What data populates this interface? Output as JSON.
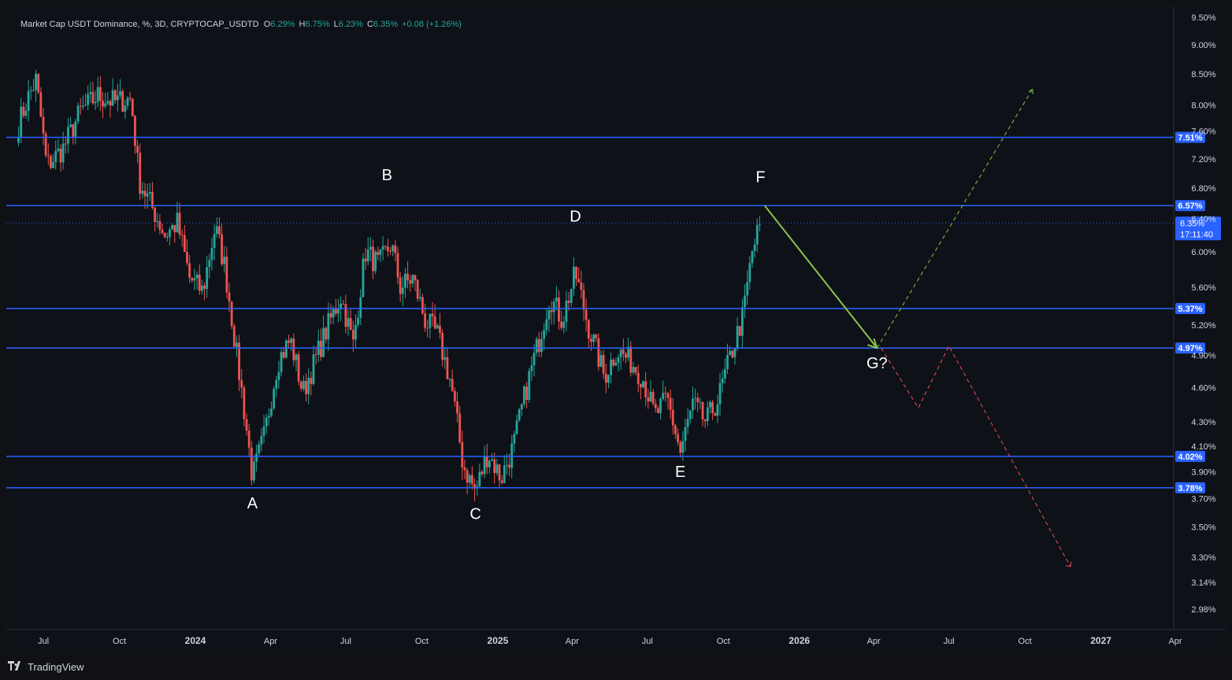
{
  "header": {
    "symbol": "Market Cap USDT Dominance, %, 3D, CRYPTOCAP_USDTD",
    "open_label": "O",
    "open": "6.29%",
    "high_label": "H",
    "high": "6.75%",
    "low_label": "L",
    "low": "6.23%",
    "close_label": "C",
    "close": "6.35%",
    "change": "+0.08 (+1.26%)"
  },
  "footer": {
    "logo_icon": "tradingview-logo-icon",
    "brand": "TradingView"
  },
  "colors": {
    "up": "#26a69a",
    "down": "#ef5350",
    "level_line": "#2962ff",
    "level_badge": "#2962ff",
    "projection_green": "#8bc34a",
    "projection_red": "#ef5350",
    "price_badge": "#2962ff"
  },
  "chart_data": {
    "type": "candlestick",
    "timeframe": "3D",
    "y_scale": "log",
    "ylim": [
      2.9,
      9.6
    ],
    "price_ticks": [
      "9.50%",
      "9.00%",
      "8.50%",
      "8.00%",
      "7.60%",
      "7.20%",
      "6.80%",
      "6.40%",
      "6.00%",
      "5.60%",
      "5.20%",
      "4.90%",
      "4.60%",
      "4.30%",
      "4.10%",
      "3.90%",
      "3.70%",
      "3.50%",
      "3.30%",
      "3.14%",
      "2.98%"
    ],
    "x_ticks": [
      "Jul",
      "Oct",
      "2024",
      "Apr",
      "Jul",
      "Oct",
      "2025",
      "Apr",
      "Jul",
      "Oct",
      "2026",
      "Apr",
      "Jul",
      "Oct",
      "2027",
      "Apr"
    ],
    "horizontal_levels": [
      {
        "label": "7.51%",
        "value": 7.51
      },
      {
        "label": "6.57%",
        "value": 6.57
      },
      {
        "label": "5.37%",
        "value": 5.37
      },
      {
        "label": "4.97%",
        "value": 4.97
      },
      {
        "label": "4.02%",
        "value": 4.02
      },
      {
        "label": "3.78%",
        "value": 3.78
      }
    ],
    "last_price": {
      "label": "6.35%",
      "value": 6.35,
      "countdown": "17:11:40"
    },
    "pivots": [
      {
        "label": "A",
        "date": "2024-03-10",
        "value": 3.78
      },
      {
        "label": "B",
        "date": "2024-08-20",
        "value": 6.78
      },
      {
        "label": "C",
        "date": "2024-12-05",
        "value": 3.7
      },
      {
        "label": "D",
        "date": "2025-04-05",
        "value": 6.25
      },
      {
        "label": "E",
        "date": "2025-08-10",
        "value": 4.02
      },
      {
        "label": "F",
        "date": "2025-11-15",
        "value": 6.75
      },
      {
        "label": "G?",
        "date": "2026-04-05",
        "value": 4.97
      }
    ],
    "projections": {
      "green_solid": [
        [
          "2025-11-20",
          6.57
        ],
        [
          "2026-04-05",
          4.97
        ]
      ],
      "green_dashed": [
        [
          "2026-04-05",
          4.97
        ],
        [
          "2026-10-10",
          8.25
        ]
      ],
      "red_dashed": [
        [
          "2026-04-10",
          4.97
        ],
        [
          "2026-05-25",
          4.42
        ],
        [
          "2026-07-01",
          4.99
        ],
        [
          "2026-11-25",
          3.24
        ]
      ]
    },
    "waypoints": [
      [
        "2023-06-01",
        7.7
      ],
      [
        "2023-06-12",
        8.1
      ],
      [
        "2023-06-22",
        8.4
      ],
      [
        "2023-07-05",
        7.1
      ],
      [
        "2023-07-25",
        7.35
      ],
      [
        "2023-08-15",
        7.9
      ],
      [
        "2023-09-05",
        8.15
      ],
      [
        "2023-09-25",
        8.05
      ],
      [
        "2023-10-15",
        8.1
      ],
      [
        "2023-10-25",
        6.9
      ],
      [
        "2023-11-25",
        6.2
      ],
      [
        "2023-12-10",
        6.35
      ],
      [
        "2023-12-25",
        5.7
      ],
      [
        "2024-01-10",
        5.55
      ],
      [
        "2024-01-25",
        6.3
      ],
      [
        "2024-02-05",
        5.85
      ],
      [
        "2024-02-20",
        4.9
      ],
      [
        "2024-03-10",
        3.85
      ],
      [
        "2024-03-25",
        4.2
      ],
      [
        "2024-04-10",
        4.85
      ],
      [
        "2024-04-25",
        5.05
      ],
      [
        "2024-05-10",
        4.55
      ],
      [
        "2024-05-25",
        4.85
      ],
      [
        "2024-06-10",
        5.2
      ],
      [
        "2024-06-25",
        5.5
      ],
      [
        "2024-07-10",
        5.0
      ],
      [
        "2024-07-25",
        6.0
      ],
      [
        "2024-08-10",
        5.85
      ],
      [
        "2024-08-25",
        6.1
      ],
      [
        "2024-09-05",
        5.6
      ],
      [
        "2024-09-20",
        5.7
      ],
      [
        "2024-10-05",
        5.25
      ],
      [
        "2024-10-20",
        5.1
      ],
      [
        "2024-11-05",
        4.65
      ],
      [
        "2024-11-20",
        3.95
      ],
      [
        "2024-12-05",
        3.75
      ],
      [
        "2024-12-20",
        4.05
      ],
      [
        "2025-01-05",
        3.85
      ],
      [
        "2025-01-20",
        4.1
      ],
      [
        "2025-02-05",
        4.6
      ],
      [
        "2025-02-20",
        5.05
      ],
      [
        "2025-03-05",
        5.5
      ],
      [
        "2025-03-20",
        5.25
      ],
      [
        "2025-04-05",
        5.75
      ],
      [
        "2025-04-20",
        5.2
      ],
      [
        "2025-05-10",
        4.7
      ],
      [
        "2025-05-25",
        4.95
      ],
      [
        "2025-06-10",
        4.85
      ],
      [
        "2025-06-25",
        4.7
      ],
      [
        "2025-07-10",
        4.35
      ],
      [
        "2025-07-25",
        4.5
      ],
      [
        "2025-08-10",
        4.05
      ],
      [
        "2025-08-25",
        4.45
      ],
      [
        "2025-09-10",
        4.3
      ],
      [
        "2025-09-25",
        4.5
      ],
      [
        "2025-10-10",
        4.9
      ],
      [
        "2025-10-25",
        5.3
      ],
      [
        "2025-11-05",
        6.0
      ],
      [
        "2025-11-15",
        6.35
      ]
    ]
  }
}
